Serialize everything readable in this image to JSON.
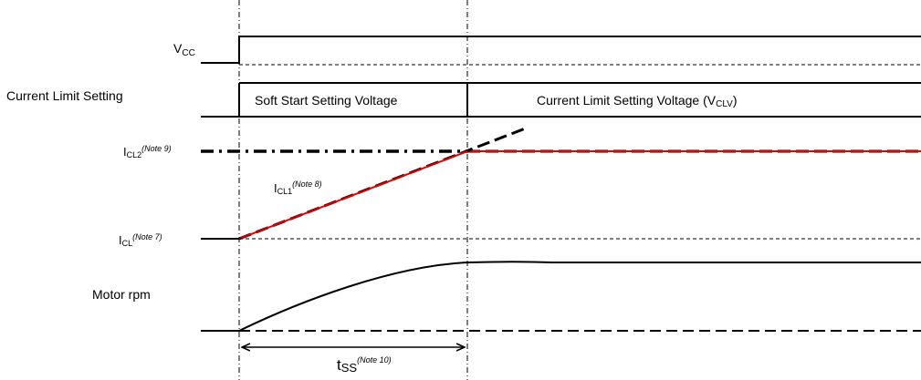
{
  "labels": {
    "vcc_main": "V",
    "vcc_sub": "CC",
    "current_limit_setting": "Current Limit Setting",
    "soft_start_setting_voltage": "Soft Start Setting Voltage",
    "current_limit_setting_voltage_main": "Current Limit Setting Voltage (V",
    "current_limit_setting_voltage_sub": "CLV",
    "current_limit_setting_voltage_close": ")",
    "icl2_main": "I",
    "icl2_sub": "CL2",
    "icl2_note": "(Note 9)",
    "icl1_main": "I",
    "icl1_sub": "CL1",
    "icl1_note": "(Note 8)",
    "icl_main": "I",
    "icl_sub": "CL",
    "icl_note": "(Note 7)",
    "motor_rpm": "Motor rpm",
    "tss_main": "t",
    "tss_sub": "SS",
    "tss_note": "(Note 10)"
  },
  "colors": {
    "line": "#000000",
    "current_limit_trace": "#e60000",
    "icl_label": "#e60000"
  }
}
